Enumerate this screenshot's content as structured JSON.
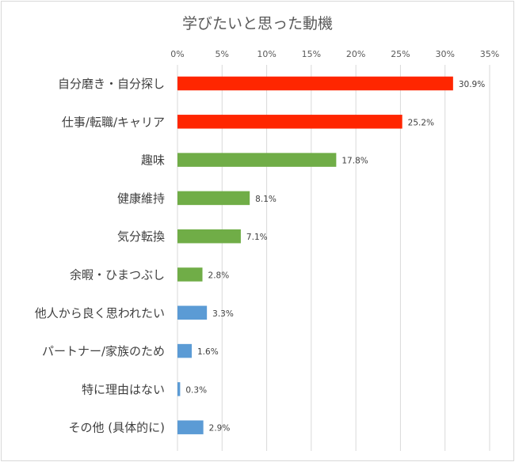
{
  "chart_data": {
    "type": "bar",
    "orientation": "horizontal",
    "title": "学びたいと思った動機",
    "xlim": [
      0,
      35
    ],
    "ticks": [
      "0%",
      "5%",
      "10%",
      "15%",
      "20%",
      "25%",
      "30%",
      "35%"
    ],
    "grid": true,
    "categories": [
      "自分磨き・自分探し",
      "仕事/転職/キャリア",
      "趣味",
      "健康維持",
      "気分転換",
      "余暇・ひまつぶし",
      "他人から良く思われたい",
      "パートナー/家族のため",
      "特に理由はない",
      "その他 (具体的に)"
    ],
    "values": [
      30.9,
      25.2,
      17.8,
      8.1,
      7.1,
      2.8,
      3.3,
      1.6,
      0.3,
      2.9
    ],
    "data_labels": [
      "30.9%",
      "25.2%",
      "17.8%",
      "8.1%",
      "7.1%",
      "2.8%",
      "3.3%",
      "1.6%",
      "0.3%",
      "2.9%"
    ],
    "colors": [
      "#ff2600",
      "#ff2600",
      "#70ad47",
      "#70ad47",
      "#70ad47",
      "#70ad47",
      "#5b9bd5",
      "#5b9bd5",
      "#5b9bd5",
      "#5b9bd5"
    ]
  }
}
